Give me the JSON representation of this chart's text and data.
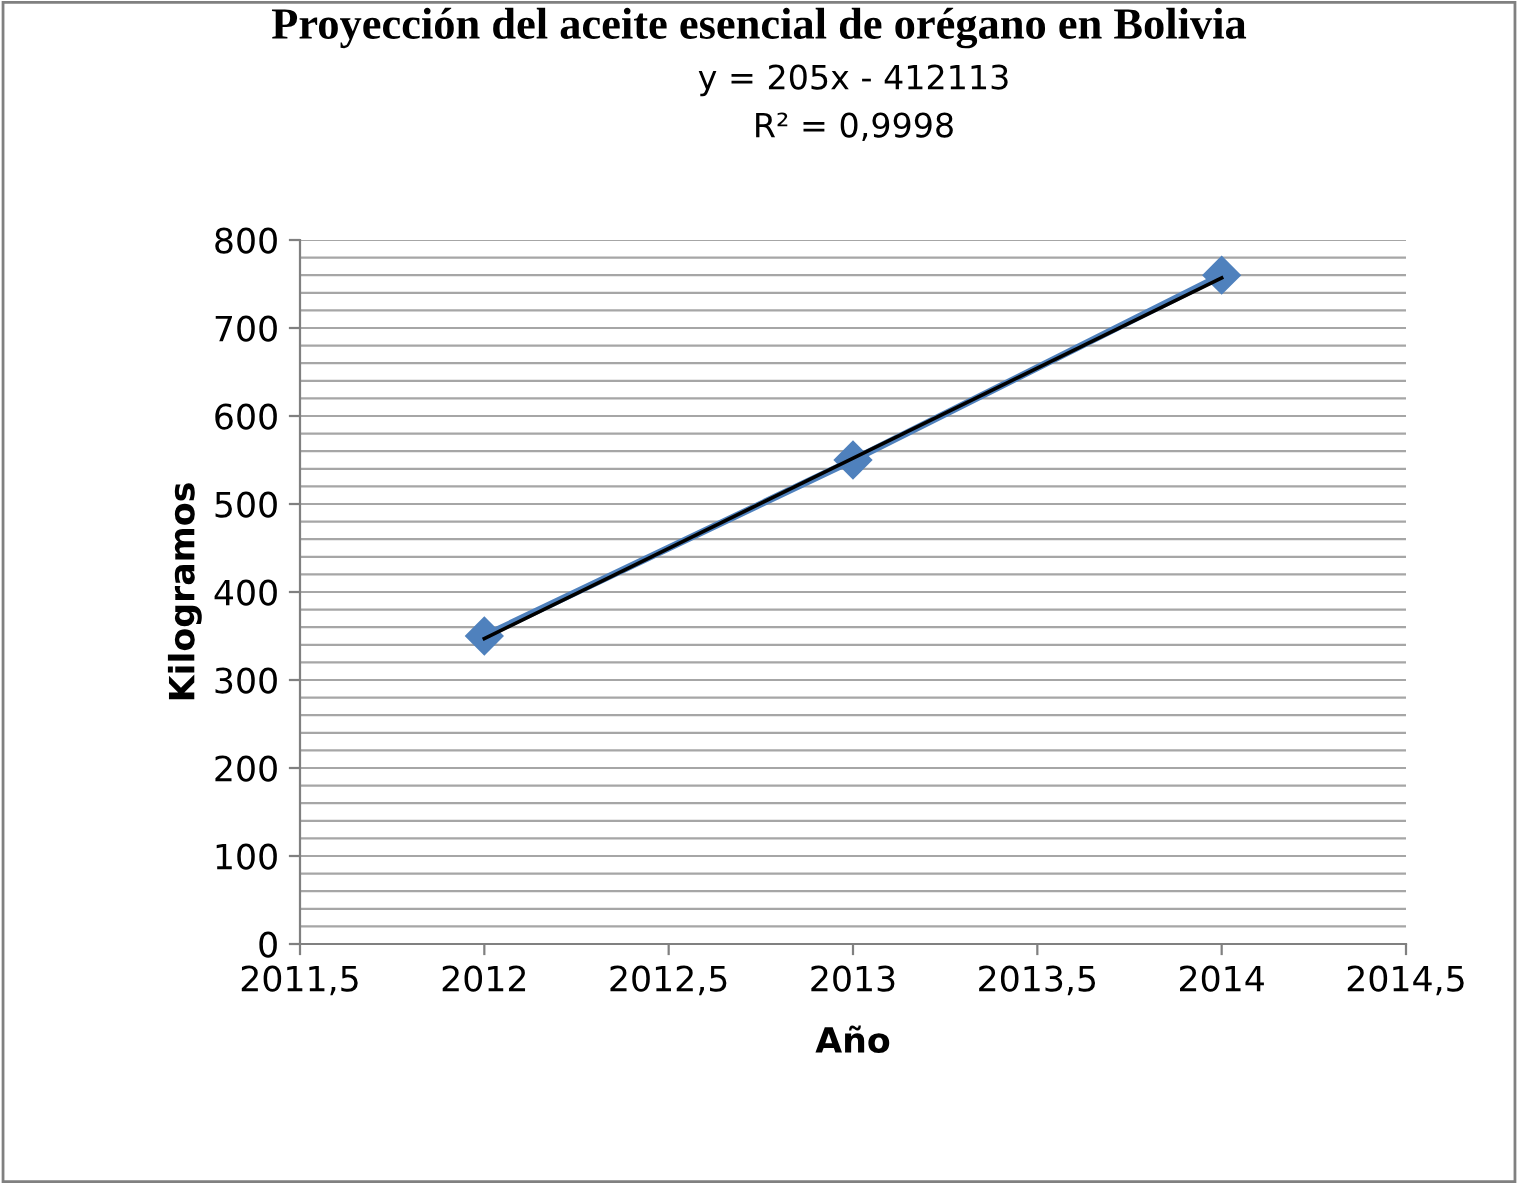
{
  "chart_data": {
    "type": "line",
    "title": "Proyección del aceite esencial de orégano en Bolivia",
    "xlabel": "Año",
    "ylabel": "Kilogramos",
    "x": [
      2012,
      2013,
      2014
    ],
    "series": [
      {
        "color": "#4f81bd",
        "values": [
          350,
          550,
          760
        ],
        "marker": "diamond"
      },
      {
        "type": "line",
        "color": "#000000",
        "x": [
          2012,
          2014
        ],
        "values": [
          347,
          757
        ],
        "marker": "none"
      }
    ],
    "annotations": [
      "y = 205x - 412113",
      "R² = 0,9998"
    ],
    "xlim": [
      2011.5,
      2014.5
    ],
    "xticks": [
      {
        "value": 2011.5,
        "label": "2011,5"
      },
      2012,
      {
        "value": 2012.5,
        "label": "2012,5"
      },
      2013,
      {
        "value": 2013.5,
        "label": "2013,5"
      },
      2014,
      {
        "value": 2014.5,
        "label": "2014,5"
      }
    ],
    "ylim": [
      0,
      800
    ],
    "yticks": [
      0,
      {
        "value": 20,
        "label": null
      },
      {
        "value": 40,
        "label": null
      },
      {
        "value": 60,
        "label": null
      },
      {
        "value": 80,
        "label": null
      },
      100,
      {
        "value": 120,
        "label": null
      },
      {
        "value": 140,
        "label": null
      },
      {
        "value": 160,
        "label": null
      },
      {
        "value": 180,
        "label": null
      },
      200,
      {
        "value": 220,
        "label": null
      },
      {
        "value": 240,
        "label": null
      },
      {
        "value": 260,
        "label": null
      },
      {
        "value": 280,
        "label": null
      },
      300,
      {
        "value": 320,
        "label": null
      },
      {
        "value": 340,
        "label": null
      },
      {
        "value": 360,
        "label": null
      },
      {
        "value": 380,
        "label": null
      },
      400,
      {
        "value": 420,
        "label": null
      },
      {
        "value": 440,
        "label": null
      },
      {
        "value": 460,
        "label": null
      },
      {
        "value": 480,
        "label": null
      },
      500,
      {
        "value": 520,
        "label": null
      },
      {
        "value": 540,
        "label": null
      },
      {
        "value": 560,
        "label": null
      },
      {
        "value": 580,
        "label": null
      },
      600,
      {
        "value": 620,
        "label": null
      },
      {
        "value": 640,
        "label": null
      },
      {
        "value": 660,
        "label": null
      },
      {
        "value": 680,
        "label": null
      },
      700,
      {
        "value": 720,
        "label": null
      },
      {
        "value": 740,
        "label": null
      },
      {
        "value": 760,
        "label": null
      },
      {
        "value": 780,
        "label": null
      },
      800
    ],
    "grid": "y"
  }
}
